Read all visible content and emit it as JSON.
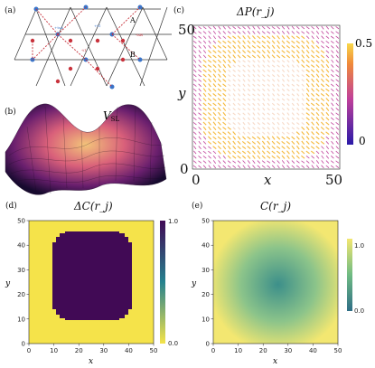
{
  "figure": {
    "panels": {
      "a": {
        "label": "(a)",
        "site_labels": [
          "A",
          "B"
        ],
        "small_labels": [
          "+tsA",
          "-tsB",
          "-t1",
          "+t1"
        ]
      },
      "b": {
        "label": "(b)",
        "surface_label_main": "V",
        "surface_label_sub": "SL"
      },
      "c": {
        "label": "(c)",
        "title": "ΔP(r_j)",
        "xlabel": "x",
        "ylabel": "y",
        "xticks": [
          "0",
          "50"
        ],
        "yticks": [
          "0",
          "50"
        ],
        "colorbar_ticks": [
          "0.5",
          "0"
        ],
        "colors": {
          "low": "#2a1aa8",
          "mid": "#c0409a",
          "high": "#f5b83a",
          "core": "#f6d9c6"
        }
      },
      "d": {
        "label": "(d)",
        "title": "ΔC(r_j)",
        "xlabel": "x",
        "ylabel": "y",
        "xticks": [
          "0",
          "10",
          "20",
          "30",
          "40",
          "50"
        ],
        "yticks": [
          "0",
          "10",
          "20",
          "30",
          "40",
          "50"
        ],
        "colorbar_ticks": [
          "1.0",
          "0.0"
        ],
        "colors": {
          "outside": "#f5e34a",
          "inside": "#410a55"
        }
      },
      "e": {
        "label": "(e)",
        "title": "C(r_j)",
        "xlabel": "x",
        "ylabel": "y",
        "xticks": [
          "0",
          "10",
          "20",
          "30",
          "40",
          "50"
        ],
        "yticks": [
          "0",
          "10",
          "20",
          "30",
          "40",
          "50"
        ],
        "colorbar_ticks": [
          "1.0",
          "0.0"
        ],
        "colors": {
          "outside": "#f3e771",
          "inside": "#3c8f8a"
        }
      }
    }
  }
}
